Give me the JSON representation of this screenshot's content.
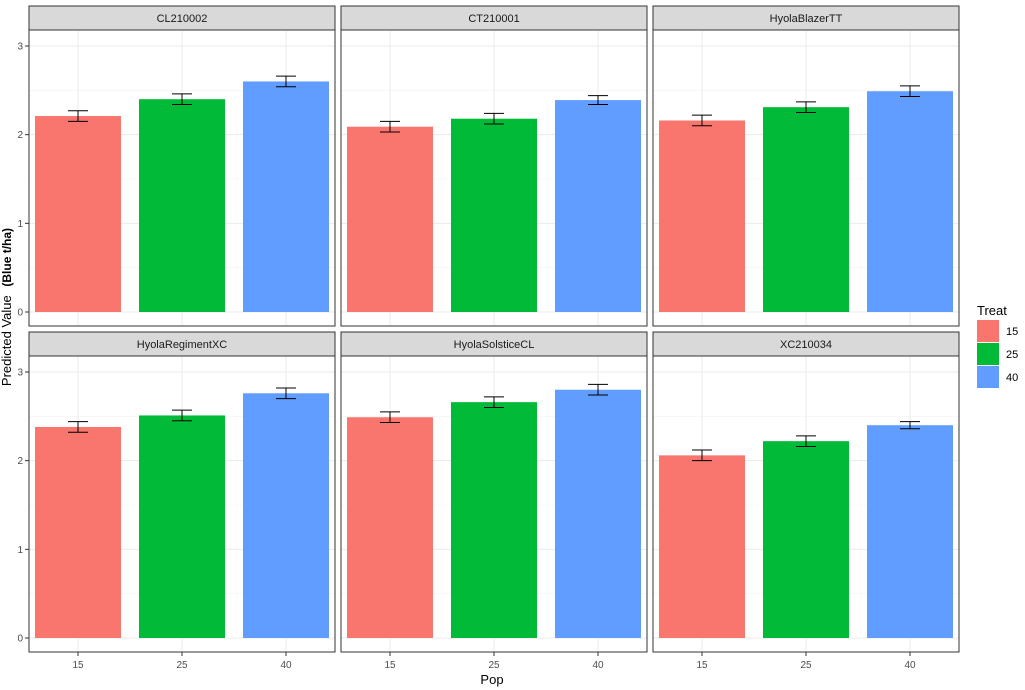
{
  "chart_data": {
    "type": "bar",
    "xlabel": "Pop",
    "ylabel_main": "Predicted Value",
    "ylabel_unit": "(Blue t/ha)",
    "categories": [
      "15",
      "25",
      "40"
    ],
    "ylim": [
      0,
      3
    ],
    "yticks": [
      0,
      1,
      2,
      3
    ],
    "grid": true,
    "legend": {
      "title": "Treat",
      "position": "right",
      "entries": [
        {
          "label": "15",
          "color": "#F8766D"
        },
        {
          "label": "25",
          "color": "#00BA38"
        },
        {
          "label": "40",
          "color": "#619CFF"
        }
      ]
    },
    "panels": [
      {
        "name": "CL210002",
        "values": [
          2.21,
          2.4,
          2.6
        ],
        "errors": [
          0.06,
          0.06,
          0.06
        ]
      },
      {
        "name": "CT210001",
        "values": [
          2.09,
          2.18,
          2.39
        ],
        "errors": [
          0.06,
          0.06,
          0.05
        ]
      },
      {
        "name": "HyolaBlazerTT",
        "values": [
          2.16,
          2.31,
          2.49
        ],
        "errors": [
          0.06,
          0.06,
          0.06
        ]
      },
      {
        "name": "HyolaRegimentXC",
        "values": [
          2.38,
          2.51,
          2.76
        ],
        "errors": [
          0.06,
          0.06,
          0.06
        ]
      },
      {
        "name": "HyolaSolsticeCL",
        "values": [
          2.49,
          2.66,
          2.8
        ],
        "errors": [
          0.06,
          0.06,
          0.06
        ]
      },
      {
        "name": "XC210034",
        "values": [
          2.06,
          2.22,
          2.4
        ],
        "errors": [
          0.06,
          0.06,
          0.04
        ]
      }
    ]
  }
}
